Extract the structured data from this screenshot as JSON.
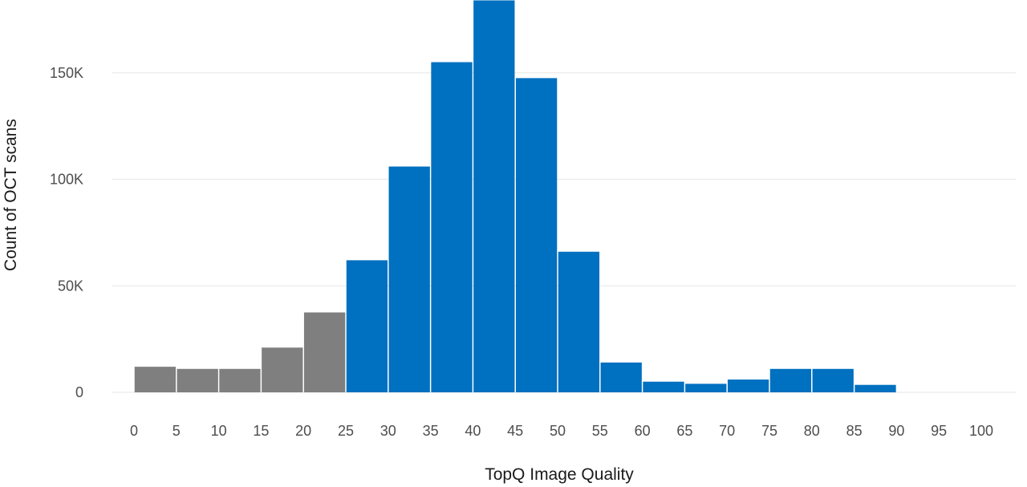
{
  "chart_data": {
    "type": "bar",
    "title": "",
    "xlabel": "TopQ Image Quality",
    "ylabel": "Count of OCT scans",
    "bin_width": 5,
    "bins": [
      {
        "start": 0,
        "end": 5,
        "value": 12000,
        "group": "low"
      },
      {
        "start": 5,
        "end": 10,
        "value": 11000,
        "group": "low"
      },
      {
        "start": 10,
        "end": 15,
        "value": 11000,
        "group": "low"
      },
      {
        "start": 15,
        "end": 20,
        "value": 21000,
        "group": "low"
      },
      {
        "start": 20,
        "end": 25,
        "value": 37500,
        "group": "low"
      },
      {
        "start": 25,
        "end": 30,
        "value": 62000,
        "group": "ok"
      },
      {
        "start": 30,
        "end": 35,
        "value": 106000,
        "group": "ok"
      },
      {
        "start": 35,
        "end": 40,
        "value": 155000,
        "group": "ok"
      },
      {
        "start": 40,
        "end": 45,
        "value": 184000,
        "group": "ok"
      },
      {
        "start": 45,
        "end": 50,
        "value": 147500,
        "group": "ok"
      },
      {
        "start": 50,
        "end": 55,
        "value": 66000,
        "group": "ok"
      },
      {
        "start": 55,
        "end": 60,
        "value": 14000,
        "group": "ok"
      },
      {
        "start": 60,
        "end": 65,
        "value": 5000,
        "group": "ok"
      },
      {
        "start": 65,
        "end": 70,
        "value": 4000,
        "group": "ok"
      },
      {
        "start": 70,
        "end": 75,
        "value": 6000,
        "group": "ok"
      },
      {
        "start": 75,
        "end": 80,
        "value": 11000,
        "group": "ok"
      },
      {
        "start": 80,
        "end": 85,
        "value": 11000,
        "group": "ok"
      },
      {
        "start": 85,
        "end": 90,
        "value": 3500,
        "group": "ok"
      },
      {
        "start": 90,
        "end": 95,
        "value": 0,
        "group": "ok"
      },
      {
        "start": 95,
        "end": 100,
        "value": 0,
        "group": "ok"
      }
    ],
    "group_colors": {
      "low": "#7f7f7f",
      "ok": "#0070c0"
    },
    "xlim": [
      0,
      100
    ],
    "x_ticks": [
      "0",
      "5",
      "10",
      "15",
      "20",
      "25",
      "30",
      "35",
      "40",
      "45",
      "50",
      "55",
      "60",
      "65",
      "70",
      "75",
      "80",
      "85",
      "90",
      "95",
      "100"
    ],
    "ylim": [
      0,
      185000
    ],
    "y_ticks": [
      {
        "value": 0,
        "label": "0"
      },
      {
        "value": 50000,
        "label": "50K"
      },
      {
        "value": 100000,
        "label": "100K"
      },
      {
        "value": 150000,
        "label": "150K"
      }
    ],
    "grid": "horizontal",
    "legend": "none",
    "background": "#ffffff",
    "grid_color": "#ebebeb"
  }
}
